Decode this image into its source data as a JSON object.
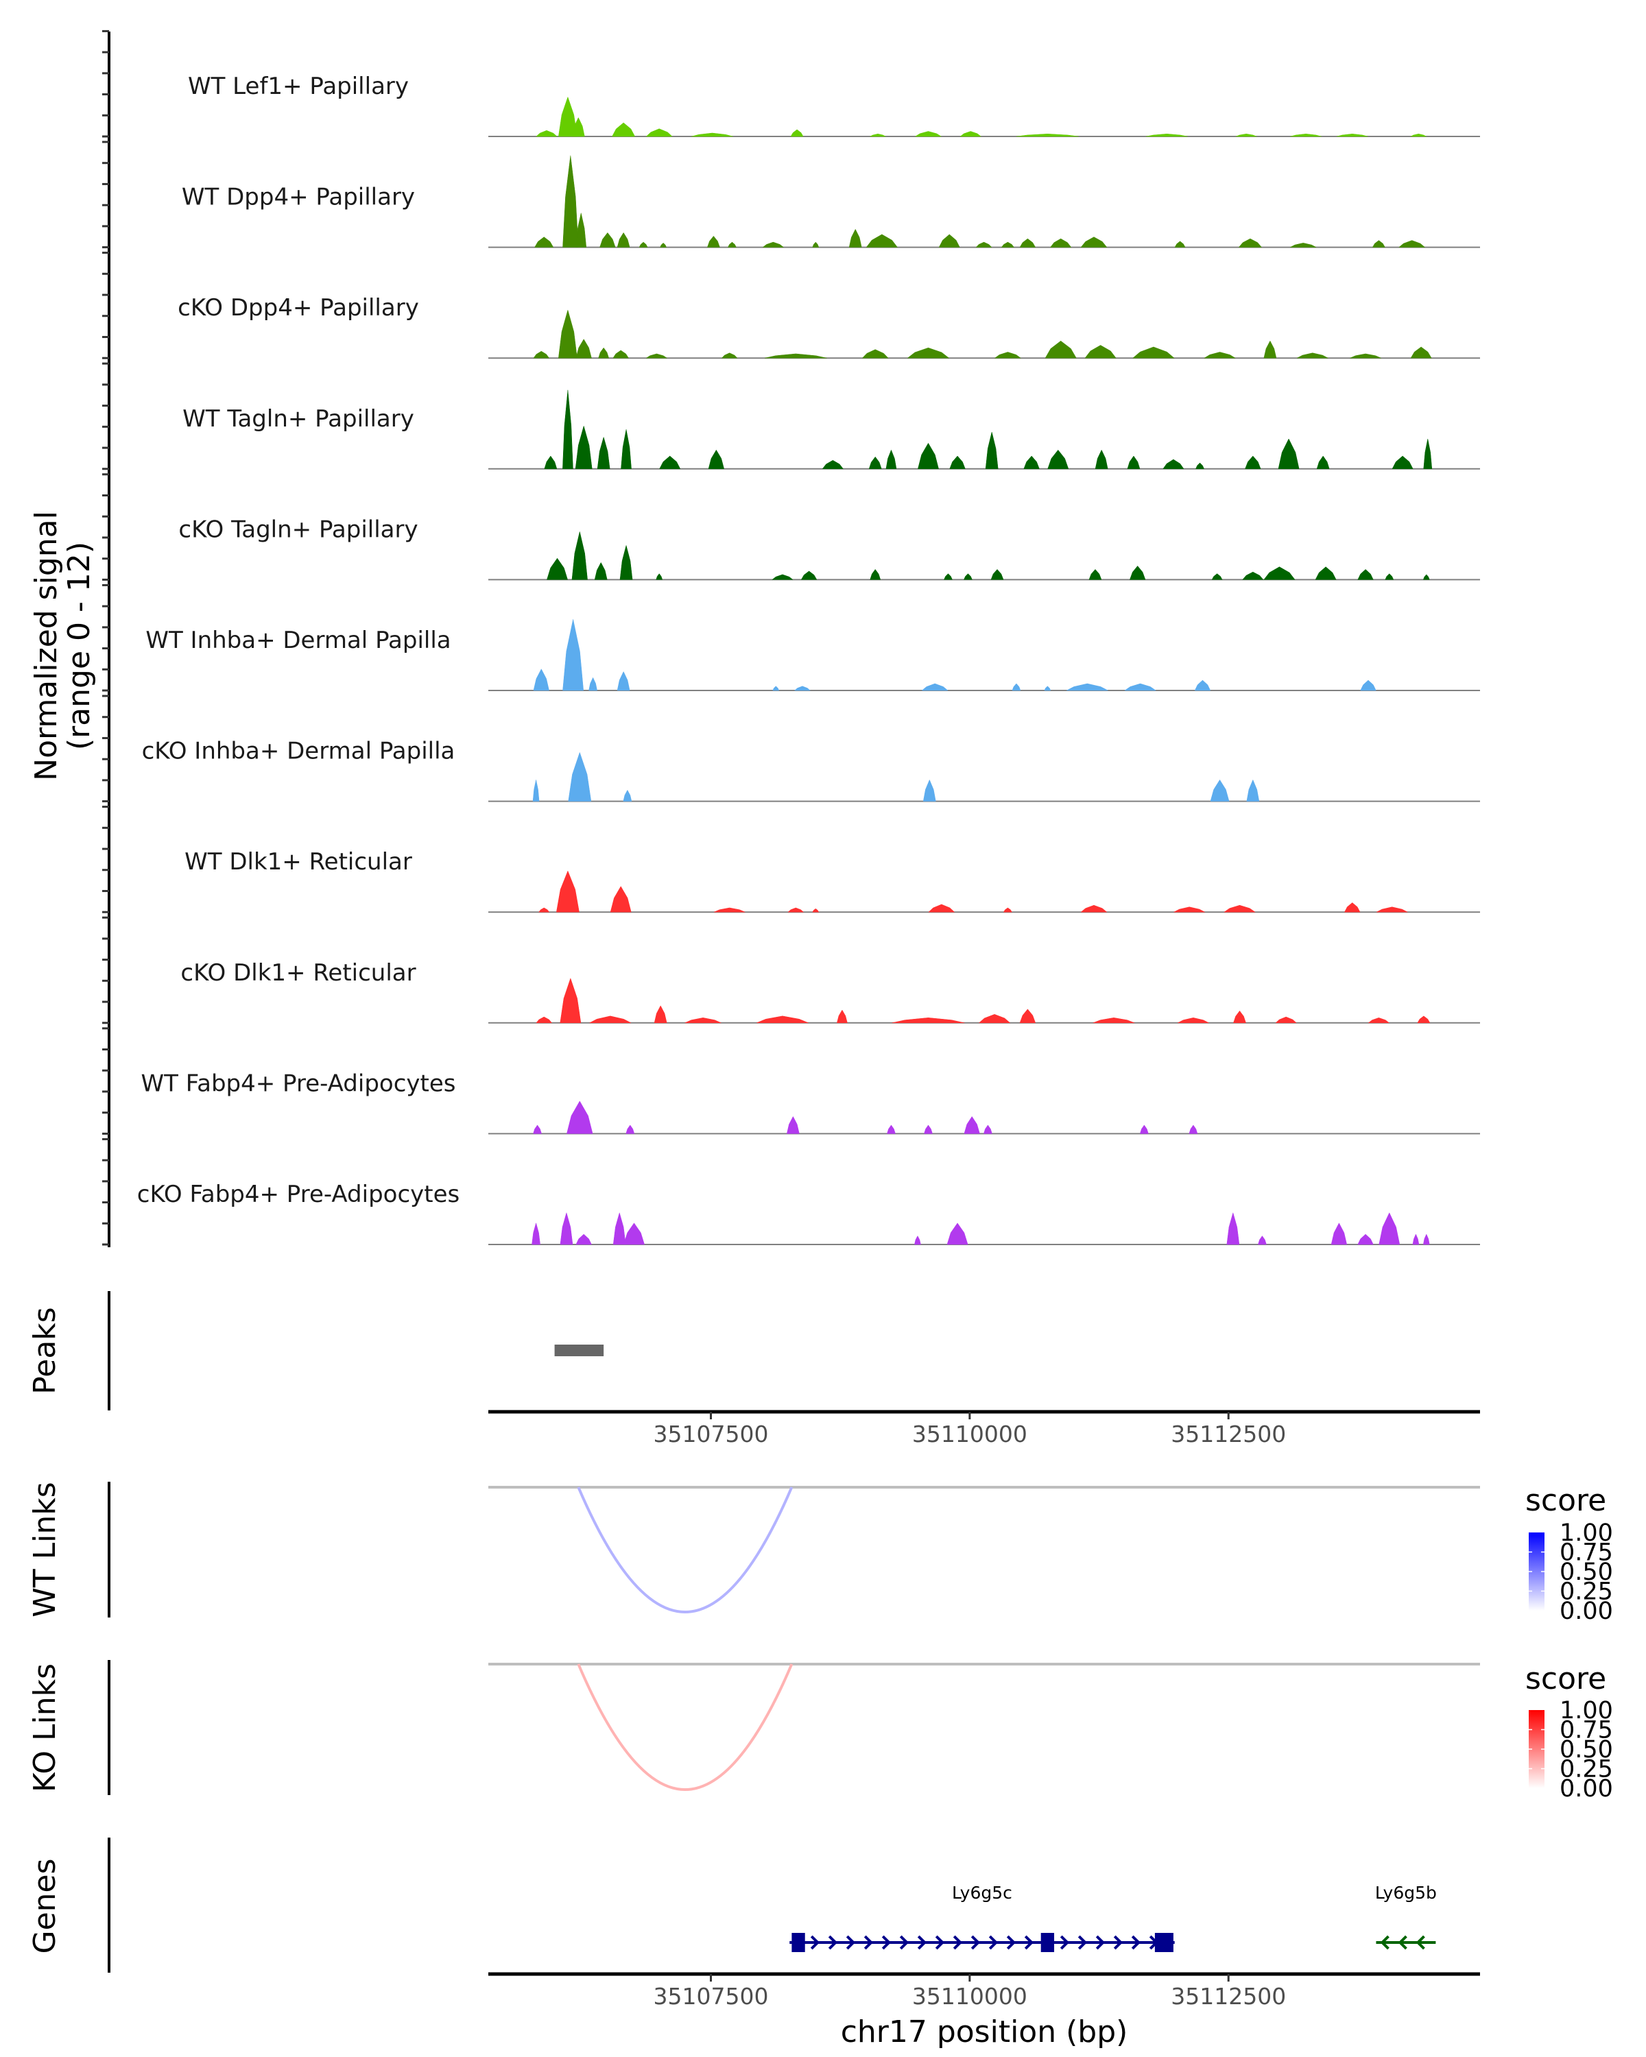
{
  "chart_data": {
    "type": "area",
    "title": "",
    "region": {
      "chromosome": "chr17",
      "start": 35105350,
      "end": 35114930
    },
    "xlabel": "chr17 position (bp)",
    "x_ticks": [
      35107500,
      35110000,
      35112500
    ],
    "x_tick_labels": [
      "35107500",
      "35110000",
      "35112500"
    ],
    "coverage": {
      "ylabel_line1": "Normalized signal",
      "ylabel_line2": "(range 0 - 12)",
      "ylim": [
        0,
        12
      ],
      "tracks": [
        {
          "name": "WT Lef1+ Papillary",
          "color": "#66CD00",
          "peaks": [
            [
              35105913,
              200,
              0.7
            ],
            [
              35106118,
              180,
              4.6
            ],
            [
              35106220,
              120,
              2.2
            ],
            [
              35106656,
              220,
              1.6
            ],
            [
              35107001,
              250,
              0.9
            ],
            [
              35107513,
              400,
              0.4
            ],
            [
              35108332,
              120,
              0.8
            ],
            [
              35109113,
              150,
              0.3
            ],
            [
              35109600,
              250,
              0.6
            ],
            [
              35110009,
              200,
              0.6
            ],
            [
              35110752,
              600,
              0.3
            ],
            [
              35111904,
              400,
              0.3
            ],
            [
              35112672,
              200,
              0.3
            ],
            [
              35113248,
              300,
              0.3
            ],
            [
              35113696,
              300,
              0.3
            ],
            [
              35114336,
              150,
              0.3
            ]
          ]
        },
        {
          "name": "WT Dpp4+ Papillary",
          "color": "#458B00",
          "peaks": [
            [
              35105888,
              180,
              1.2
            ],
            [
              35106144,
              150,
              10.7
            ],
            [
              35106246,
              100,
              4.0
            ],
            [
              35106502,
              150,
              1.7
            ],
            [
              35106656,
              120,
              1.7
            ],
            [
              35106848,
              80,
              0.6
            ],
            [
              35107040,
              60,
              0.5
            ],
            [
              35107526,
              120,
              1.3
            ],
            [
              35107705,
              80,
              0.6
            ],
            [
              35108102,
              200,
              0.6
            ],
            [
              35108512,
              60,
              0.6
            ],
            [
              35108896,
              120,
              2.1
            ],
            [
              35109152,
              300,
              1.5
            ],
            [
              35109804,
              200,
              1.5
            ],
            [
              35110137,
              150,
              0.6
            ],
            [
              35110368,
              120,
              0.6
            ],
            [
              35110560,
              150,
              1.0
            ],
            [
              35110880,
              200,
              1.0
            ],
            [
              35111200,
              250,
              1.2
            ],
            [
              35112032,
              100,
              0.7
            ],
            [
              35112710,
              220,
              1.0
            ],
            [
              35113222,
              250,
              0.5
            ],
            [
              35113952,
              120,
              0.8
            ],
            [
              35114272,
              250,
              0.8
            ]
          ]
        },
        {
          "name": "cKO Dpp4+ Papillary",
          "color": "#458B00",
          "peaks": [
            [
              35105862,
              150,
              0.8
            ],
            [
              35106118,
              180,
              5.6
            ],
            [
              35106272,
              150,
              2.2
            ],
            [
              35106464,
              100,
              1.2
            ],
            [
              35106630,
              150,
              0.9
            ],
            [
              35106976,
              200,
              0.5
            ],
            [
              35107680,
              150,
              0.6
            ],
            [
              35108320,
              600,
              0.5
            ],
            [
              35109088,
              250,
              1.0
            ],
            [
              35109600,
              400,
              1.2
            ],
            [
              35110368,
              250,
              0.7
            ],
            [
              35110880,
              300,
              2.0
            ],
            [
              35111264,
              300,
              1.5
            ],
            [
              35111776,
              400,
              1.3
            ],
            [
              35112416,
              300,
              0.7
            ],
            [
              35112902,
              120,
              2.0
            ],
            [
              35113312,
              300,
              0.6
            ],
            [
              35113824,
              300,
              0.5
            ],
            [
              35114361,
              200,
              1.3
            ]
          ]
        },
        {
          "name": "WT Tagln+ Papillary",
          "color": "#006400",
          "peaks": [
            [
              35105952,
              120,
              1.5
            ],
            [
              35106118,
              100,
              9.2
            ],
            [
              35106272,
              160,
              5.0
            ],
            [
              35106464,
              120,
              3.7
            ],
            [
              35106682,
              100,
              4.6
            ],
            [
              35107104,
              200,
              1.5
            ],
            [
              35107552,
              150,
              2.2
            ],
            [
              35108678,
              200,
              1.0
            ],
            [
              35109088,
              120,
              1.4
            ],
            [
              35109242,
              100,
              2.2
            ],
            [
              35109600,
              200,
              3.0
            ],
            [
              35109882,
              150,
              1.5
            ],
            [
              35110214,
              120,
              4.3
            ],
            [
              35110598,
              150,
              1.5
            ],
            [
              35110854,
              200,
              2.2
            ],
            [
              35111274,
              120,
              2.2
            ],
            [
              35111584,
              120,
              1.5
            ],
            [
              35111968,
              200,
              1.1
            ],
            [
              35112224,
              80,
              0.7
            ],
            [
              35112736,
              150,
              1.5
            ],
            [
              35113082,
              200,
              3.5
            ],
            [
              35113414,
              120,
              1.5
            ],
            [
              35114182,
              200,
              1.5
            ],
            [
              35114425,
              80,
              3.5
            ]
          ]
        },
        {
          "name": "cKO Tagln+ Papillary",
          "color": "#006400",
          "peaks": [
            [
              35106016,
              200,
              2.5
            ],
            [
              35106233,
              150,
              5.6
            ],
            [
              35106438,
              120,
              2.0
            ],
            [
              35106682,
              120,
              4.0
            ],
            [
              35107001,
              60,
              0.7
            ],
            [
              35108192,
              200,
              0.6
            ],
            [
              35108448,
              150,
              1.0
            ],
            [
              35109088,
              100,
              1.2
            ],
            [
              35109792,
              80,
              0.7
            ],
            [
              35109984,
              80,
              0.7
            ],
            [
              35110266,
              120,
              1.2
            ],
            [
              35111213,
              120,
              1.2
            ],
            [
              35111622,
              150,
              1.6
            ],
            [
              35112390,
              100,
              0.7
            ],
            [
              35112736,
              200,
              0.9
            ],
            [
              35112992,
              300,
              1.5
            ],
            [
              35113440,
              200,
              1.5
            ],
            [
              35113824,
              150,
              1.2
            ],
            [
              35114054,
              80,
              0.7
            ],
            [
              35114412,
              60,
              0.6
            ]
          ]
        },
        {
          "name": "WT Inhba+ Dermal Papilla",
          "color": "#5CACEE",
          "peaks": [
            [
              35105862,
              150,
              2.5
            ],
            [
              35106169,
              200,
              8.3
            ],
            [
              35106361,
              80,
              1.5
            ],
            [
              35106656,
              120,
              2.2
            ],
            [
              35108128,
              60,
              0.5
            ],
            [
              35108384,
              150,
              0.5
            ],
            [
              35109664,
              250,
              0.8
            ],
            [
              35110451,
              80,
              0.8
            ],
            [
              35110752,
              60,
              0.5
            ],
            [
              35111136,
              400,
              0.8
            ],
            [
              35111648,
              300,
              0.8
            ],
            [
              35112250,
              150,
              1.2
            ],
            [
              35113850,
              150,
              1.2
            ]
          ]
        },
        {
          "name": "cKO Inhba+ Dermal Papilla",
          "color": "#5CACEE",
          "peaks": [
            [
              35105811,
              60,
              2.5
            ],
            [
              35106233,
              220,
              5.7
            ],
            [
              35106694,
              80,
              1.3
            ],
            [
              35109612,
              120,
              2.5
            ],
            [
              35112416,
              180,
              2.5
            ],
            [
              35112736,
              120,
              2.5
            ]
          ]
        },
        {
          "name": "WT Dlk1+ Reticular",
          "color": "#FF3030",
          "peaks": [
            [
              35105888,
              100,
              0.5
            ],
            [
              35106118,
              220,
              4.8
            ],
            [
              35106630,
              200,
              3.0
            ],
            [
              35107680,
              300,
              0.5
            ],
            [
              35108320,
              150,
              0.5
            ],
            [
              35108512,
              60,
              0.4
            ],
            [
              35109728,
              250,
              0.9
            ],
            [
              35110368,
              80,
              0.5
            ],
            [
              35111200,
              250,
              0.8
            ],
            [
              35112122,
              300,
              0.6
            ],
            [
              35112608,
              300,
              0.8
            ],
            [
              35113696,
              150,
              1.1
            ],
            [
              35114080,
              300,
              0.6
            ]
          ]
        },
        {
          "name": "cKO Dlk1+ Reticular",
          "color": "#FF3030",
          "peaks": [
            [
              35105888,
              150,
              0.7
            ],
            [
              35106144,
              200,
              5.2
            ],
            [
              35106528,
              400,
              0.8
            ],
            [
              35107014,
              120,
              2.0
            ],
            [
              35107424,
              350,
              0.6
            ],
            [
              35108192,
              500,
              0.8
            ],
            [
              35108768,
              100,
              1.5
            ],
            [
              35109600,
              700,
              0.6
            ],
            [
              35110240,
              300,
              1.0
            ],
            [
              35110560,
              150,
              1.6
            ],
            [
              35111392,
              400,
              0.6
            ],
            [
              35112160,
              300,
              0.6
            ],
            [
              35112608,
              120,
              1.4
            ],
            [
              35113056,
              200,
              0.7
            ],
            [
              35113952,
              200,
              0.6
            ],
            [
              35114386,
              120,
              0.8
            ]
          ]
        },
        {
          "name": "WT Fabp4+ Pre-Adipocytes",
          "color": "#B23AEE",
          "peaks": [
            [
              35105824,
              80,
              1.0
            ],
            [
              35106233,
              250,
              3.8
            ],
            [
              35106720,
              80,
              1.0
            ],
            [
              35108294,
              120,
              2.0
            ],
            [
              35109242,
              80,
              1.0
            ],
            [
              35109600,
              80,
              1.0
            ],
            [
              35110022,
              150,
              2.0
            ],
            [
              35110176,
              80,
              1.0
            ],
            [
              35111686,
              80,
              1.0
            ],
            [
              35112160,
              80,
              1.0
            ]
          ]
        },
        {
          "name": "cKO Fabp4+ Pre-Adipocytes",
          "color": "#B23AEE",
          "peaks": [
            [
              35105811,
              80,
              2.5
            ],
            [
              35106105,
              120,
              3.7
            ],
            [
              35106272,
              150,
              1.2
            ],
            [
              35106617,
              120,
              3.7
            ],
            [
              35106758,
              200,
              2.5
            ],
            [
              35109497,
              60,
              1.0
            ],
            [
              35109882,
              200,
              2.5
            ],
            [
              35112544,
              120,
              3.7
            ],
            [
              35112826,
              80,
              1.0
            ],
            [
              35113568,
              150,
              2.5
            ],
            [
              35113824,
              150,
              1.2
            ],
            [
              35114054,
              200,
              3.7
            ],
            [
              35114310,
              60,
              1.2
            ],
            [
              35114412,
              60,
              1.2
            ]
          ]
        }
      ]
    },
    "peaks_track": {
      "label": "Peaks",
      "color": "#666666",
      "regions": [
        [
          35105990,
          35106464
        ]
      ]
    },
    "links": [
      {
        "label": "WT Links",
        "links": [
          {
            "start": 35106220,
            "end": 35108281,
            "score": 0.3
          }
        ],
        "legend": {
          "title": "score",
          "low_color": "#FFFFFF",
          "high_color": "#0000FF",
          "ticks": [
            "1.00",
            "0.75",
            "0.50",
            "0.25",
            "0.00"
          ],
          "range": [
            0,
            1
          ]
        }
      },
      {
        "label": "KO Links",
        "links": [
          {
            "start": 35106220,
            "end": 35108281,
            "score": 0.3
          }
        ],
        "legend": {
          "title": "score",
          "low_color": "#FFFFFF",
          "high_color": "#FF0000",
          "ticks": [
            "1.00",
            "0.75",
            "0.50",
            "0.25",
            "0.00"
          ],
          "range": [
            0,
            1
          ]
        }
      }
    ],
    "genes_track": {
      "label": "Genes",
      "genes": [
        {
          "name": "Ly6g5c",
          "strand": "+",
          "color": "#00008B",
          "start": 35108260,
          "end": 35111980,
          "exons": [
            [
              35108281,
              35108409
            ],
            [
              35110688,
              35110816
            ],
            [
              35111789,
              35111968
            ]
          ]
        },
        {
          "name": "Ly6g5b",
          "strand": "-",
          "color": "#006400",
          "start": 35113926,
          "end": 35114502,
          "exons": []
        }
      ]
    }
  }
}
